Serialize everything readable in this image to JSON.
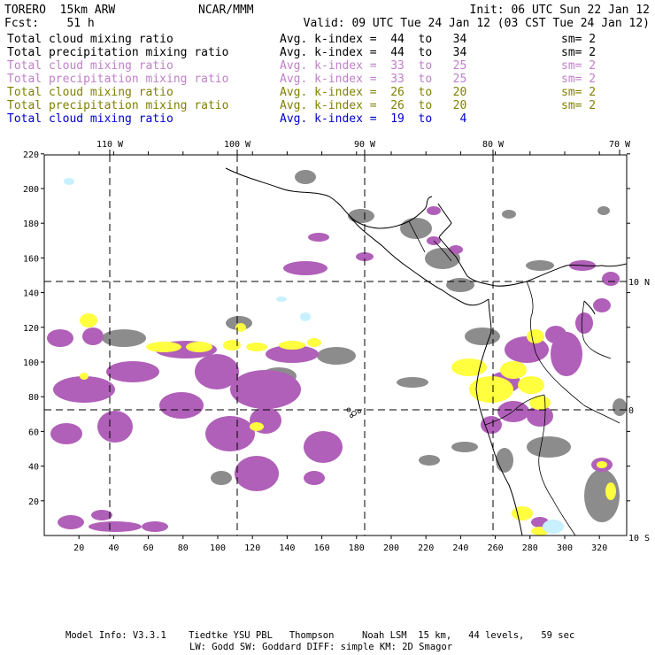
{
  "header": {
    "model": "TORERO  15km ARW",
    "org": "NCAR/MMM",
    "init": "Init: 06 UTC Sun 22 Jan 12",
    "fcst": "Fcst:    51 h",
    "valid": "Valid: 09 UTC Tue 24 Jan 12 (03 CST Tue 24 Jan 12)"
  },
  "legend": [
    {
      "field": "Total cloud mixing ratio",
      "kidx": "Avg. k-index =  44  to   34",
      "sm": "sm= 2",
      "color": "#000000"
    },
    {
      "field": "Total precipitation mixing ratio",
      "kidx": "Avg. k-index =  44  to   34",
      "sm": "sm= 2",
      "color": "#000000"
    },
    {
      "field": "Total cloud mixing ratio",
      "kidx": "Avg. k-index =  33  to   25",
      "sm": "sm= 2",
      "color": "#c080c8"
    },
    {
      "field": "Total precipitation mixing ratio",
      "kidx": "Avg. k-index =  33  to   25",
      "sm": "sm= 2",
      "color": "#c080c8"
    },
    {
      "field": "Total cloud mixing ratio",
      "kidx": "Avg. k-index =  26  to   20",
      "sm": "sm= 2",
      "color": "#808000"
    },
    {
      "field": "Total precipitation mixing ratio",
      "kidx": "Avg. k-index =  26  to   20",
      "sm": "sm= 2",
      "color": "#808000"
    },
    {
      "field": "Total cloud mixing ratio",
      "kidx": "Avg. k-index =  19  to    4",
      "sm": "",
      "color": "#0000cc"
    }
  ],
  "map": {
    "lon_labels": [
      "110 W",
      "100 W",
      "90 W",
      "80 W",
      "70 W"
    ],
    "lat_labels": [
      "10 N",
      "0",
      "10 S"
    ],
    "y_ticks": [
      "220",
      "200",
      "180",
      "160",
      "140",
      "120",
      "100",
      "80",
      "60",
      "40",
      "20"
    ],
    "x_ticks": [
      "20",
      "40",
      "60",
      "80",
      "100",
      "120",
      "140",
      "160",
      "180",
      "200",
      "220",
      "240",
      "260",
      "280",
      "300",
      "320"
    ],
    "colors": {
      "gray": "#8c8c8c",
      "purple": "#b060b8",
      "yellow": "#ffff40",
      "cyan": "#c8f0ff"
    }
  },
  "footer": {
    "line1": "Model Info: V3.3.1    Tiedtke YSU PBL   Thompson     Noah LSM  15 km,   44 levels,   59 sec",
    "line2": "LW: Godd SW: Goddard DIFF: simple KM: 2D Smagor"
  }
}
